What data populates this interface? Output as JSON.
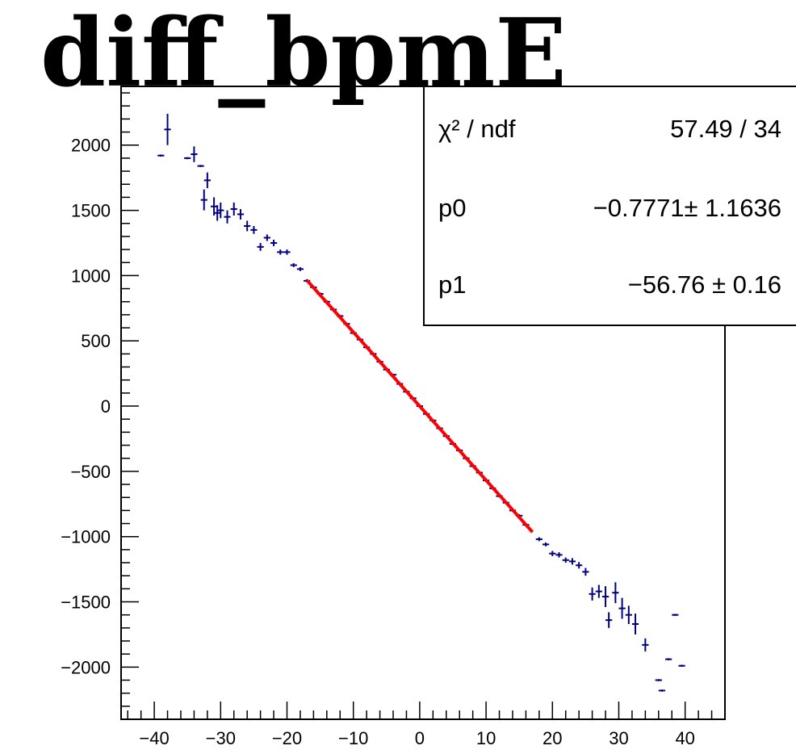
{
  "chart_data": {
    "type": "scatter",
    "title": "diff_bpmE",
    "xlabel": "",
    "ylabel": "",
    "xlim": [
      -45,
      46
    ],
    "ylim": [
      -2400,
      2450
    ],
    "x_ticks": [
      -40,
      -30,
      -20,
      -10,
      0,
      10,
      20,
      30,
      40
    ],
    "y_ticks": [
      2000,
      1500,
      1000,
      500,
      0,
      -500,
      -1000,
      -1500,
      -2000
    ],
    "grid": false,
    "series": [
      {
        "marker": "error-cross",
        "color": "#000080",
        "points": [
          {
            "x": -39,
            "y": 1920,
            "ey": 0
          },
          {
            "x": -38,
            "y": 2120,
            "ey": 120
          },
          {
            "x": -35,
            "y": 1900,
            "ey": 0
          },
          {
            "x": -34,
            "y": 1930,
            "ey": 60
          },
          {
            "x": -33,
            "y": 1840,
            "ey": 0
          },
          {
            "x": -32.5,
            "y": 1580,
            "ey": 80
          },
          {
            "x": -32,
            "y": 1730,
            "ey": 60
          },
          {
            "x": -31,
            "y": 1530,
            "ey": 70
          },
          {
            "x": -30.5,
            "y": 1480,
            "ey": 60
          },
          {
            "x": -30,
            "y": 1500,
            "ey": 60
          },
          {
            "x": -29,
            "y": 1450,
            "ey": 50
          },
          {
            "x": -28,
            "y": 1510,
            "ey": 50
          },
          {
            "x": -27,
            "y": 1470,
            "ey": 40
          },
          {
            "x": -26,
            "y": 1380,
            "ey": 40
          },
          {
            "x": -25,
            "y": 1350,
            "ey": 30
          },
          {
            "x": -24,
            "y": 1220,
            "ey": 30
          },
          {
            "x": -23,
            "y": 1290,
            "ey": 25
          },
          {
            "x": -22,
            "y": 1250,
            "ey": 25
          },
          {
            "x": -21,
            "y": 1180,
            "ey": 20
          },
          {
            "x": -20,
            "y": 1180,
            "ey": 20
          },
          {
            "x": -19,
            "y": 1080,
            "ey": 15
          },
          {
            "x": -18,
            "y": 1050,
            "ey": 15
          },
          {
            "x": -17,
            "y": 960,
            "ey": 12
          },
          {
            "x": -16,
            "y": 910,
            "ey": 12
          },
          {
            "x": -15,
            "y": 860,
            "ey": 10
          },
          {
            "x": -14,
            "y": 800,
            "ey": 10
          },
          {
            "x": -13,
            "y": 740,
            "ey": 10
          },
          {
            "x": -12,
            "y": 690,
            "ey": 10
          },
          {
            "x": -11,
            "y": 630,
            "ey": 9
          },
          {
            "x": -10,
            "y": 560,
            "ey": 9
          },
          {
            "x": -9,
            "y": 510,
            "ey": 8
          },
          {
            "x": -8,
            "y": 450,
            "ey": 8
          },
          {
            "x": -7,
            "y": 400,
            "ey": 8
          },
          {
            "x": -6,
            "y": 340,
            "ey": 8
          },
          {
            "x": -5,
            "y": 280,
            "ey": 8
          },
          {
            "x": -4,
            "y": 240,
            "ey": 8
          },
          {
            "x": -3,
            "y": 170,
            "ey": 8
          },
          {
            "x": -2,
            "y": 110,
            "ey": 8
          },
          {
            "x": -1,
            "y": 60,
            "ey": 8
          },
          {
            "x": 0,
            "y": 0,
            "ey": 8
          },
          {
            "x": 1,
            "y": -60,
            "ey": 8
          },
          {
            "x": 2,
            "y": -110,
            "ey": 8
          },
          {
            "x": 3,
            "y": -170,
            "ey": 8
          },
          {
            "x": 4,
            "y": -230,
            "ey": 8
          },
          {
            "x": 5,
            "y": -290,
            "ey": 8
          },
          {
            "x": 6,
            "y": -340,
            "ey": 8
          },
          {
            "x": 7,
            "y": -400,
            "ey": 8
          },
          {
            "x": 8,
            "y": -460,
            "ey": 9
          },
          {
            "x": 9,
            "y": -510,
            "ey": 9
          },
          {
            "x": 10,
            "y": -570,
            "ey": 9
          },
          {
            "x": 11,
            "y": -630,
            "ey": 10
          },
          {
            "x": 12,
            "y": -690,
            "ey": 10
          },
          {
            "x": 13,
            "y": -740,
            "ey": 10
          },
          {
            "x": 14,
            "y": -800,
            "ey": 10
          },
          {
            "x": 15,
            "y": -840,
            "ey": 12
          },
          {
            "x": 16,
            "y": -910,
            "ey": 12
          },
          {
            "x": 18,
            "y": -1020,
            "ey": 15
          },
          {
            "x": 19,
            "y": -1060,
            "ey": 15
          },
          {
            "x": 20,
            "y": -1130,
            "ey": 20
          },
          {
            "x": 21,
            "y": -1140,
            "ey": 20
          },
          {
            "x": 22,
            "y": -1180,
            "ey": 20
          },
          {
            "x": 23,
            "y": -1190,
            "ey": 25
          },
          {
            "x": 24,
            "y": -1220,
            "ey": 25
          },
          {
            "x": 25,
            "y": -1270,
            "ey": 30
          },
          {
            "x": 26,
            "y": -1440,
            "ey": 50
          },
          {
            "x": 27,
            "y": -1420,
            "ey": 50
          },
          {
            "x": 28,
            "y": -1460,
            "ey": 80
          },
          {
            "x": 28.5,
            "y": -1640,
            "ey": 60
          },
          {
            "x": 29.5,
            "y": -1430,
            "ey": 80
          },
          {
            "x": 30.5,
            "y": -1550,
            "ey": 80
          },
          {
            "x": 31.5,
            "y": -1600,
            "ey": 70
          },
          {
            "x": 32.5,
            "y": -1670,
            "ey": 80
          },
          {
            "x": 34,
            "y": -1830,
            "ey": 50
          },
          {
            "x": 36,
            "y": -2100,
            "ey": 0
          },
          {
            "x": 36.5,
            "y": -2180,
            "ey": 0
          },
          {
            "x": 37.5,
            "y": -1940,
            "ey": 0
          },
          {
            "x": 38.5,
            "y": -1600,
            "ey": 0
          },
          {
            "x": 39.5,
            "y": -1990,
            "ey": 0
          }
        ]
      }
    ],
    "fit": {
      "type": "line",
      "color": "#ff0000",
      "p0": -0.7771,
      "p1": -56.76,
      "x_range": [
        -17,
        17
      ]
    }
  },
  "stats": [
    {
      "label": "χ² / ndf",
      "value": "57.49 / 34"
    },
    {
      "label": "p0",
      "value": "−0.7771± 1.1636"
    },
    {
      "label": "p1",
      "value": "−56.76 ± 0.16"
    }
  ]
}
